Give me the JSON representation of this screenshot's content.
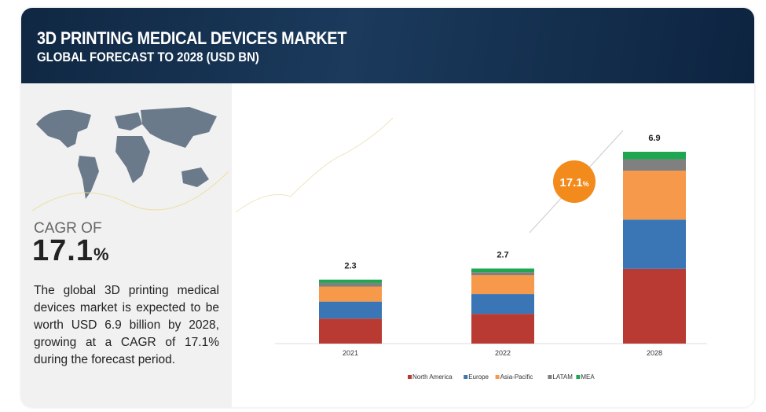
{
  "header": {
    "title": "3D PRINTING MEDICAL DEVICES MARKET",
    "subtitle": "GLOBAL FORECAST TO 2028 (USD BN)"
  },
  "left_panel": {
    "cagr_label": "CAGR OF",
    "cagr_value": "17.1",
    "cagr_unit": "%",
    "description": "The global 3D printing medical devices market is expected to be worth USD 6.9 billion by 2028, growing at a CAGR of 17.1% during the forecast period."
  },
  "badge": {
    "value": "17.1",
    "unit": "%",
    "color": "#f28a1c"
  },
  "chart_data": {
    "type": "bar",
    "stacked": true,
    "title": "3D PRINTING MEDICAL DEVICES MARKET",
    "subtitle": "GLOBAL FORECAST TO 2028 (USD BN)",
    "categories": [
      "2021",
      "2022",
      "2028"
    ],
    "totals": [
      "2.3",
      "2.7",
      "6.9"
    ],
    "series": [
      {
        "name": "North America",
        "color": "#b83a33",
        "values": [
          0.9,
          1.07,
          2.69
        ]
      },
      {
        "name": "Europe",
        "color": "#3a76b5",
        "values": [
          0.61,
          0.71,
          1.77
        ]
      },
      {
        "name": "Asia-Pacific",
        "color": "#f7994a",
        "values": [
          0.54,
          0.68,
          1.76
        ]
      },
      {
        "name": "LATAM",
        "color": "#808080",
        "values": [
          0.13,
          0.11,
          0.41
        ]
      },
      {
        "name": "MEA",
        "color": "#1fa651",
        "values": [
          0.12,
          0.13,
          0.27
        ]
      }
    ],
    "ylim": [
      0,
      6.9
    ],
    "grid": false,
    "legend": "bottom"
  }
}
